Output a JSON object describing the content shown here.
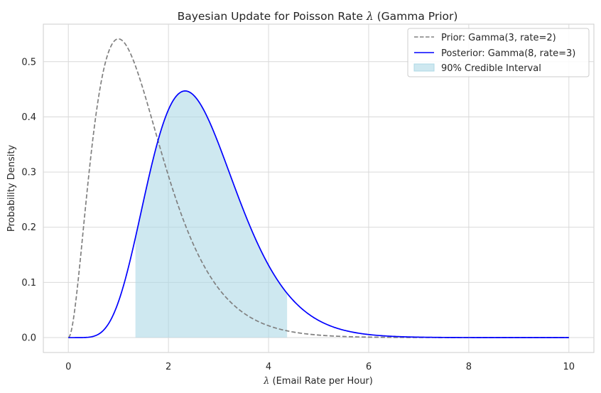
{
  "chart_data": {
    "type": "line",
    "title_prefix": "Bayesian Update for Poisson Rate ",
    "title_symbol": "λ",
    "title_suffix": " (Gamma Prior)",
    "xlabel_symbol": "λ",
    "xlabel_text": " (Email Rate per Hour)",
    "ylabel": "Probability Density",
    "xlim": [
      -0.5,
      10.5
    ],
    "ylim": [
      -0.027,
      0.568
    ],
    "xticks": [
      0,
      2,
      4,
      6,
      8,
      10
    ],
    "yticks": [
      0.0,
      0.1,
      0.2,
      0.3,
      0.4,
      0.5
    ],
    "grid": true,
    "legend_position": "top-right",
    "series": [
      {
        "name": "Prior: Gamma(3, rate=2)",
        "distribution": "gamma",
        "shape": 3,
        "rate": 2,
        "x_range": [
          0,
          10
        ],
        "color": "#808080",
        "style": "dashed"
      },
      {
        "name": "Posterior: Gamma(8, rate=3)",
        "distribution": "gamma",
        "shape": 8,
        "rate": 3,
        "x_range": [
          0,
          10
        ],
        "color": "#0000ff",
        "style": "solid"
      }
    ],
    "credible_interval": {
      "name": "90% Credible Interval",
      "level": 0.9,
      "of_series": 1,
      "lower": 1.34,
      "upper": 4.37,
      "color": "#add8e6"
    }
  }
}
